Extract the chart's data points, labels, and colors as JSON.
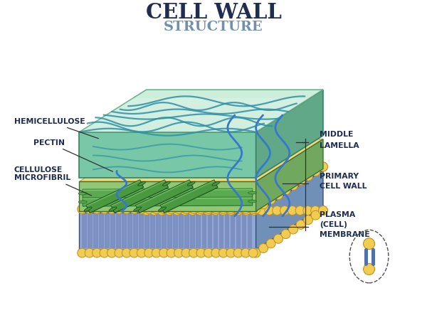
{
  "title_line1": "CELL WALL",
  "title_line2": "STRUCTURE",
  "title1_color": "#1e2d50",
  "title2_color": "#7090b0",
  "bg_color": "#ffffff",
  "labels_left": [
    "HEMICELLULOSE",
    "PECTIN",
    "CELLULOSE\nMICROFIBRIL"
  ],
  "labels_right": [
    "MIDDLE\nLAMELLA",
    "PRIMARY\nCELL WALL",
    "PLASMA\n(CELL)\nMEMBRANE"
  ],
  "label_color": "#1e2d50",
  "ml_color": "#b8e8d0",
  "ml_edge": "#5aa880",
  "pcw_color": "#90c878",
  "pcw_edge": "#3a7030",
  "microfibril_color": "#5aaa50",
  "microfibril_dark": "#2a7030",
  "microfibril_light": "#90d880",
  "pectin_color": "#4080d0",
  "membrane_fill": "#90a8d8",
  "membrane_edge": "#404878",
  "bead_color": "#f0cc50",
  "bead_edge": "#c09020",
  "yellow_fill": "#f0d878",
  "bracket_color": "#303030"
}
